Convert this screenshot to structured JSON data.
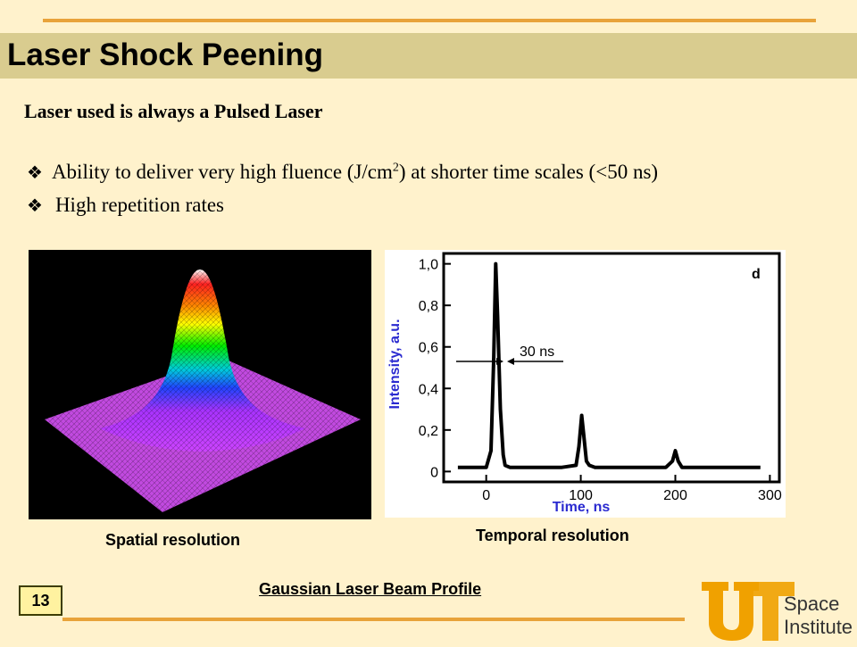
{
  "slide": {
    "title": "Laser Shock Peening",
    "subheading": "Laser used is always a Pulsed Laser",
    "bullets": [
      {
        "text_before": "Ability to deliver very high fluence (J/cm",
        "superscript": "2",
        "text_after": ") at shorter time scales (<50 ns)"
      },
      {
        "text": "High repetition rates"
      }
    ],
    "captions": {
      "spatial": "Spatial resolution",
      "temporal": "Temporal resolution",
      "bottom": "Gaussian Laser Beam Profile"
    },
    "page_number": "13",
    "logo": {
      "lettering": "UT",
      "line1": "Space",
      "line2": "Institute"
    }
  },
  "colors": {
    "background": "#fff2cc",
    "title_bar": "#d9cc8f",
    "accent_line": "#e8a33a",
    "logo_orange": "#f0a100",
    "axis_label_blue": "#2a2ad0"
  },
  "chart_data": {
    "type": "line",
    "panel_label": "d",
    "xlabel": "Time, ns",
    "ylabel": "Intensity, a.u.",
    "xlim": [
      -45,
      310
    ],
    "ylim": [
      -0.05,
      1.05
    ],
    "xticks": [
      0,
      100,
      200,
      300
    ],
    "yticks": [
      0,
      0.2,
      0.4,
      0.6,
      0.8,
      1.0
    ],
    "xtick_labels": [
      "0",
      "100",
      "200",
      "300"
    ],
    "ytick_labels": [
      "0",
      "0,2",
      "0,4",
      "0,6",
      "0,8",
      "1,0"
    ],
    "annotation": "30 ns",
    "series": [
      {
        "x": [
          -30,
          0,
          5,
          8,
          10,
          12,
          15,
          18,
          20,
          25,
          40,
          60,
          80,
          95,
          98,
          101,
          103,
          106,
          109,
          115,
          140,
          170,
          190,
          197,
          200,
          203,
          207,
          215,
          250,
          290
        ],
        "y": [
          0.02,
          0.02,
          0.1,
          0.55,
          1.0,
          0.75,
          0.3,
          0.08,
          0.03,
          0.02,
          0.02,
          0.02,
          0.02,
          0.03,
          0.12,
          0.27,
          0.18,
          0.05,
          0.03,
          0.02,
          0.02,
          0.02,
          0.02,
          0.05,
          0.1,
          0.05,
          0.02,
          0.02,
          0.02,
          0.02
        ]
      }
    ]
  }
}
